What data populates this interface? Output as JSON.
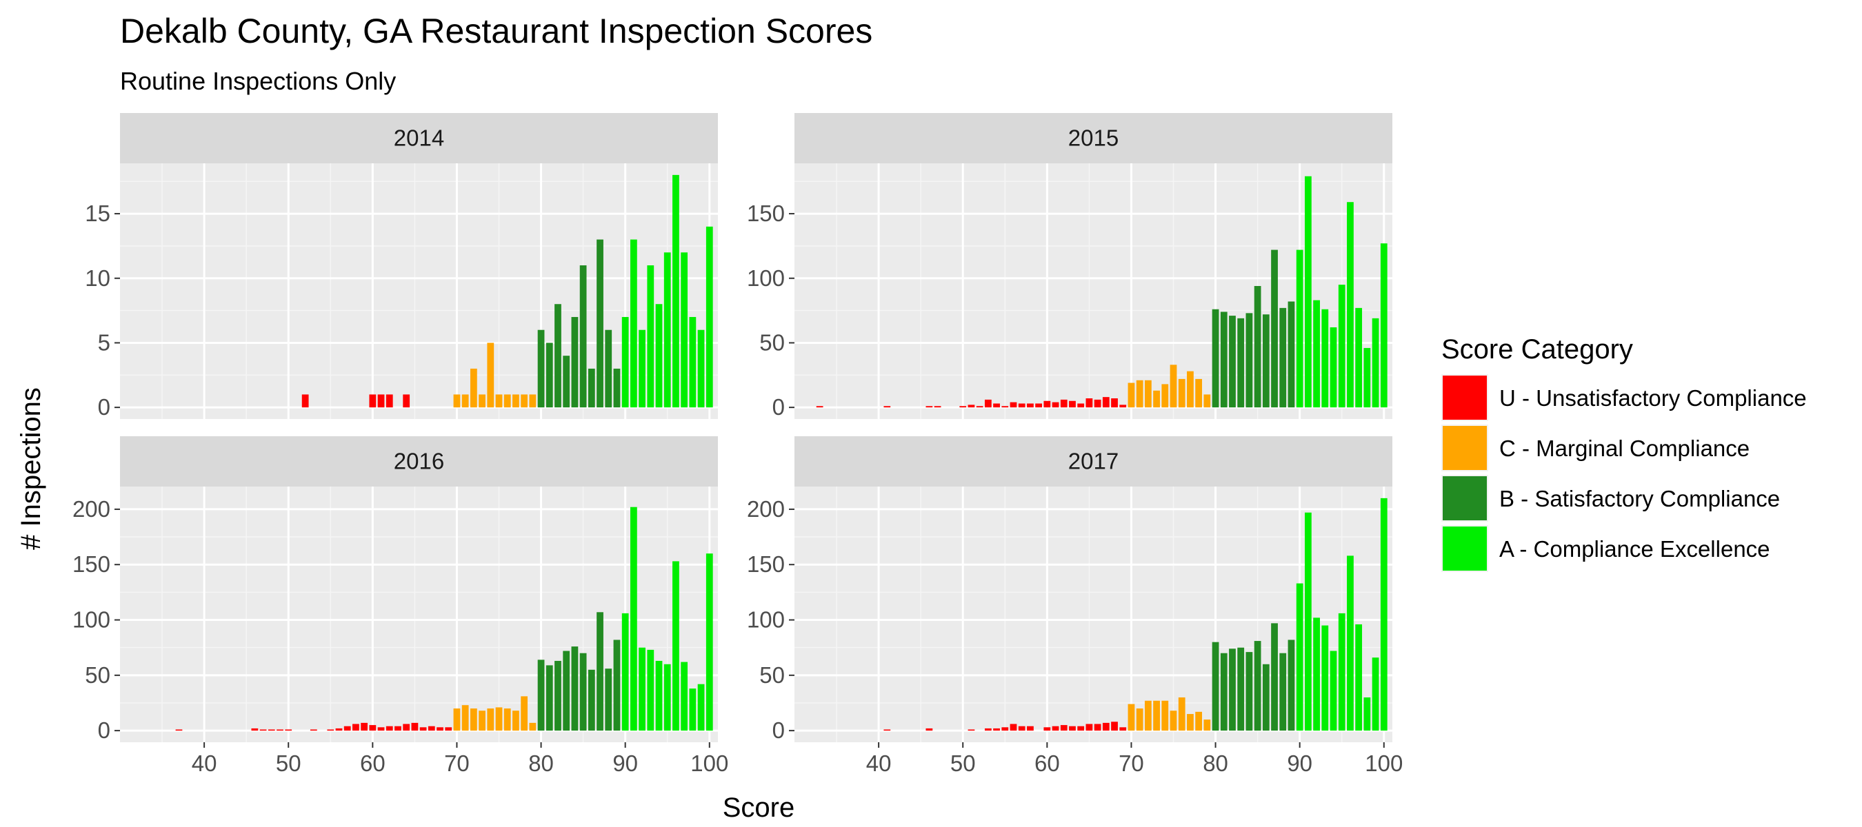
{
  "chart_data": {
    "type": "bar",
    "title": "Dekalb County, GA Restaurant Inspection Scores",
    "subtitle": "Routine Inspections Only",
    "xlabel": "Score",
    "ylabel": "# Inspections",
    "xlim": [
      30,
      101
    ],
    "x_ticks": [
      40,
      50,
      60,
      70,
      80,
      90,
      100
    ],
    "grid": true,
    "legend": {
      "title": "Score Category",
      "position": "right",
      "entries": [
        {
          "label": "U - Unsatisfactory Compliance",
          "color": "#ff0000"
        },
        {
          "label": "C - Marginal Compliance",
          "color": "#ffa500"
        },
        {
          "label": "B - Satisfactory Compliance",
          "color": "#228b22"
        },
        {
          "label": "A - Compliance Excellence",
          "color": "#00ee00"
        }
      ]
    },
    "category_breaks": {
      "C_min": 70,
      "B_min": 80,
      "A_min": 90
    },
    "panels": [
      {
        "label": "2014",
        "ylim": [
          -0.9,
          18.9
        ],
        "y_ticks": [
          0,
          5,
          10,
          15
        ],
        "x": [
          52,
          60,
          61,
          62,
          64,
          70,
          71,
          72,
          73,
          74,
          75,
          76,
          77,
          78,
          79,
          80,
          81,
          82,
          83,
          84,
          85,
          86,
          87,
          88,
          89,
          90,
          91,
          92,
          93,
          94,
          95,
          96,
          97,
          98,
          99,
          100
        ],
        "values": [
          1,
          1,
          1,
          1,
          1,
          1,
          1,
          3,
          1,
          5,
          1,
          1,
          1,
          1,
          1,
          6,
          5,
          8,
          4,
          7,
          11,
          3,
          13,
          6,
          3,
          7,
          13,
          6,
          11,
          8,
          12,
          18,
          12,
          7,
          6,
          14
        ]
      },
      {
        "label": "2015",
        "ylim": [
          -9,
          189
        ],
        "y_ticks": [
          0,
          50,
          100,
          150
        ],
        "x": [
          33,
          41,
          46,
          47,
          50,
          51,
          52,
          53,
          54,
          55,
          56,
          57,
          58,
          59,
          60,
          61,
          62,
          63,
          64,
          65,
          66,
          67,
          68,
          69,
          70,
          71,
          72,
          73,
          74,
          75,
          76,
          77,
          78,
          79,
          80,
          81,
          82,
          83,
          84,
          85,
          86,
          87,
          88,
          89,
          90,
          91,
          92,
          93,
          94,
          95,
          96,
          97,
          98,
          99,
          100
        ],
        "values": [
          1,
          1,
          1,
          1,
          1,
          2,
          1,
          6,
          3,
          1,
          4,
          3,
          3,
          3,
          5,
          4,
          6,
          5,
          3,
          7,
          6,
          8,
          7,
          2,
          19,
          21,
          21,
          13,
          18,
          33,
          22,
          28,
          22,
          10,
          76,
          74,
          71,
          69,
          73,
          94,
          72,
          122,
          77,
          82,
          122,
          179,
          83,
          76,
          62,
          95,
          159,
          77,
          46,
          69,
          127
        ]
      },
      {
        "label": "2016",
        "ylim": [
          -10.5,
          220.5
        ],
        "y_ticks": [
          0,
          50,
          100,
          150,
          200
        ],
        "x": [
          37,
          46,
          47,
          48,
          49,
          50,
          53,
          55,
          56,
          57,
          58,
          59,
          60,
          61,
          62,
          63,
          64,
          65,
          66,
          67,
          68,
          69,
          70,
          71,
          72,
          73,
          74,
          75,
          76,
          77,
          78,
          79,
          80,
          81,
          82,
          83,
          84,
          85,
          86,
          87,
          88,
          89,
          90,
          91,
          92,
          93,
          94,
          95,
          96,
          97,
          98,
          99,
          100
        ],
        "values": [
          1,
          2,
          1,
          1,
          1,
          1,
          1,
          1,
          2,
          4,
          6,
          7,
          5,
          3,
          4,
          4,
          6,
          7,
          3,
          4,
          3,
          3,
          20,
          23,
          20,
          18,
          20,
          21,
          20,
          18,
          31,
          7,
          64,
          59,
          63,
          72,
          76,
          70,
          55,
          107,
          56,
          82,
          106,
          202,
          75,
          73,
          63,
          60,
          153,
          62,
          38,
          42,
          160
        ]
      },
      {
        "label": "2017",
        "ylim": [
          -10.5,
          220.5
        ],
        "y_ticks": [
          0,
          50,
          100,
          150,
          200
        ],
        "x": [
          41,
          46,
          51,
          53,
          54,
          55,
          56,
          57,
          58,
          60,
          61,
          62,
          63,
          64,
          65,
          66,
          67,
          68,
          69,
          70,
          71,
          72,
          73,
          74,
          75,
          76,
          77,
          78,
          79,
          80,
          81,
          82,
          83,
          84,
          85,
          86,
          87,
          88,
          89,
          90,
          91,
          92,
          93,
          94,
          95,
          96,
          97,
          98,
          99,
          100
        ],
        "values": [
          1,
          2,
          1,
          2,
          2,
          3,
          6,
          4,
          4,
          3,
          4,
          5,
          4,
          4,
          6,
          6,
          7,
          8,
          3,
          24,
          20,
          27,
          27,
          27,
          18,
          30,
          15,
          17,
          10,
          80,
          70,
          74,
          75,
          71,
          81,
          60,
          97,
          70,
          82,
          133,
          197,
          102,
          95,
          72,
          106,
          158,
          96,
          30,
          66,
          210
        ]
      }
    ]
  }
}
